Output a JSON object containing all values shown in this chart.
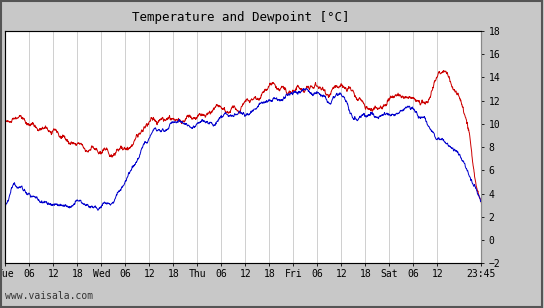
{
  "title": "Temperature and Dewpoint [°C]",
  "watermark": "www.vaisala.com",
  "ylim": [
    -2,
    18
  ],
  "yticks": [
    -2,
    0,
    2,
    4,
    6,
    8,
    10,
    12,
    14,
    16,
    18
  ],
  "outer_bg": "#c8c8c8",
  "plot_bg": "#ffffff",
  "grid_color": "#c8c8c8",
  "temp_color": "#cc0000",
  "dewp_color": "#0000cc",
  "line_width": 0.7,
  "x_tick_labels": [
    "Tue",
    "06",
    "12",
    "18",
    "Wed",
    "06",
    "12",
    "18",
    "Thu",
    "06",
    "12",
    "18",
    "Fri",
    "06",
    "12",
    "18",
    "Sat",
    "06",
    "12",
    "23:45"
  ],
  "x_tick_positions": [
    0,
    6,
    12,
    18,
    24,
    30,
    36,
    42,
    48,
    54,
    60,
    66,
    72,
    78,
    84,
    90,
    96,
    102,
    108,
    119
  ],
  "xlim": [
    0,
    119
  ],
  "font_size_title": 9,
  "font_size_ticks": 7,
  "font_size_watermark": 7,
  "temp_keypoints_x": [
    0,
    2,
    4,
    6,
    9,
    12,
    15,
    18,
    21,
    24,
    27,
    30,
    33,
    36,
    39,
    42,
    45,
    48,
    51,
    54,
    57,
    60,
    63,
    66,
    69,
    72,
    75,
    78,
    81,
    84,
    87,
    90,
    93,
    96,
    99,
    102,
    105,
    108,
    110,
    112,
    114,
    116,
    117,
    118,
    119
  ],
  "temp_keypoints_y": [
    10.2,
    10.8,
    10.5,
    10.0,
    9.5,
    9.2,
    8.8,
    8.0,
    7.8,
    7.5,
    7.6,
    8.0,
    9.0,
    10.0,
    10.5,
    10.5,
    10.3,
    10.5,
    10.8,
    11.0,
    11.2,
    11.5,
    12.2,
    13.0,
    13.0,
    12.8,
    13.0,
    13.2,
    12.8,
    13.0,
    12.5,
    11.2,
    11.5,
    12.0,
    12.2,
    12.0,
    11.5,
    14.5,
    14.5,
    13.0,
    12.0,
    9.0,
    6.0,
    4.0,
    3.0
  ],
  "dewp_keypoints_x": [
    0,
    2,
    4,
    6,
    8,
    10,
    12,
    15,
    18,
    21,
    24,
    27,
    30,
    33,
    36,
    39,
    42,
    45,
    48,
    51,
    54,
    57,
    60,
    63,
    66,
    69,
    72,
    75,
    78,
    81,
    84,
    87,
    90,
    93,
    96,
    99,
    102,
    105,
    108,
    110,
    112,
    114,
    116,
    117,
    118,
    119
  ],
  "dewp_keypoints_y": [
    3.2,
    4.8,
    4.5,
    4.0,
    3.5,
    3.2,
    3.0,
    3.0,
    3.0,
    3.0,
    3.0,
    3.2,
    5.0,
    7.0,
    9.0,
    9.5,
    9.8,
    10.0,
    10.0,
    10.2,
    10.5,
    10.8,
    11.0,
    11.5,
    12.0,
    12.5,
    12.5,
    12.8,
    12.5,
    12.0,
    12.5,
    10.5,
    10.8,
    10.5,
    10.8,
    11.0,
    11.2,
    10.5,
    9.0,
    8.5,
    8.0,
    7.0,
    5.5,
    4.5,
    4.0,
    3.5
  ]
}
